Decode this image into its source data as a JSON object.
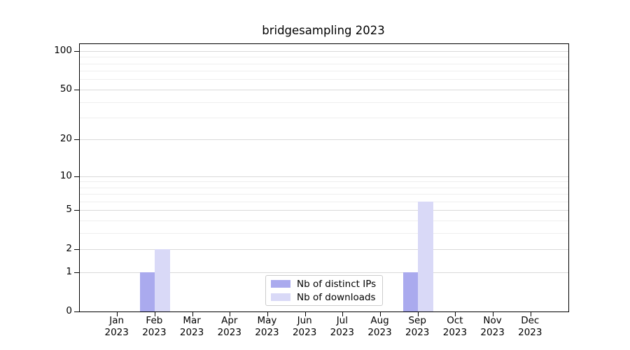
{
  "chart_data": {
    "type": "bar",
    "title": "bridgesampling 2023",
    "categories": [
      {
        "month": "Jan",
        "year": "2023"
      },
      {
        "month": "Feb",
        "year": "2023"
      },
      {
        "month": "Mar",
        "year": "2023"
      },
      {
        "month": "Apr",
        "year": "2023"
      },
      {
        "month": "May",
        "year": "2023"
      },
      {
        "month": "Jun",
        "year": "2023"
      },
      {
        "month": "Jul",
        "year": "2023"
      },
      {
        "month": "Aug",
        "year": "2023"
      },
      {
        "month": "Sep",
        "year": "2023"
      },
      {
        "month": "Oct",
        "year": "2023"
      },
      {
        "month": "Nov",
        "year": "2023"
      },
      {
        "month": "Dec",
        "year": "2023"
      }
    ],
    "series": [
      {
        "name": "Nb of distinct IPs",
        "color": "#aaaaee",
        "values": [
          0,
          1,
          0,
          0,
          0,
          0,
          0,
          0,
          1,
          0,
          0,
          0
        ]
      },
      {
        "name": "Nb of downloads",
        "color": "#d9d9f7",
        "values": [
          0,
          2,
          0,
          0,
          0,
          0,
          0,
          0,
          6,
          0,
          0,
          0
        ]
      }
    ],
    "y_axis": {
      "scale": "log1p",
      "tick_labels": [
        "100",
        "50",
        "20",
        "10",
        "5",
        "2",
        "1",
        "0"
      ],
      "tick_values": [
        100,
        50,
        20,
        10,
        5,
        2,
        1,
        0
      ],
      "major_gridlines": [
        1,
        2,
        5,
        10,
        20,
        50,
        100
      ],
      "minor_gridlines": [
        3,
        4,
        6,
        7,
        8,
        9,
        30,
        40,
        60,
        70,
        80,
        90
      ],
      "ylim": [
        0,
        113
      ]
    },
    "legend": {
      "position": "lower center",
      "entries": [
        "Nb of distinct IPs",
        "Nb of downloads"
      ]
    },
    "grid": true,
    "colors": {
      "grid_major": "#d9d9d9",
      "grid_minor": "#eeeeee",
      "axis": "#000000",
      "text": "#000000",
      "legend_border": "#cccccc",
      "background": "#ffffff"
    }
  }
}
